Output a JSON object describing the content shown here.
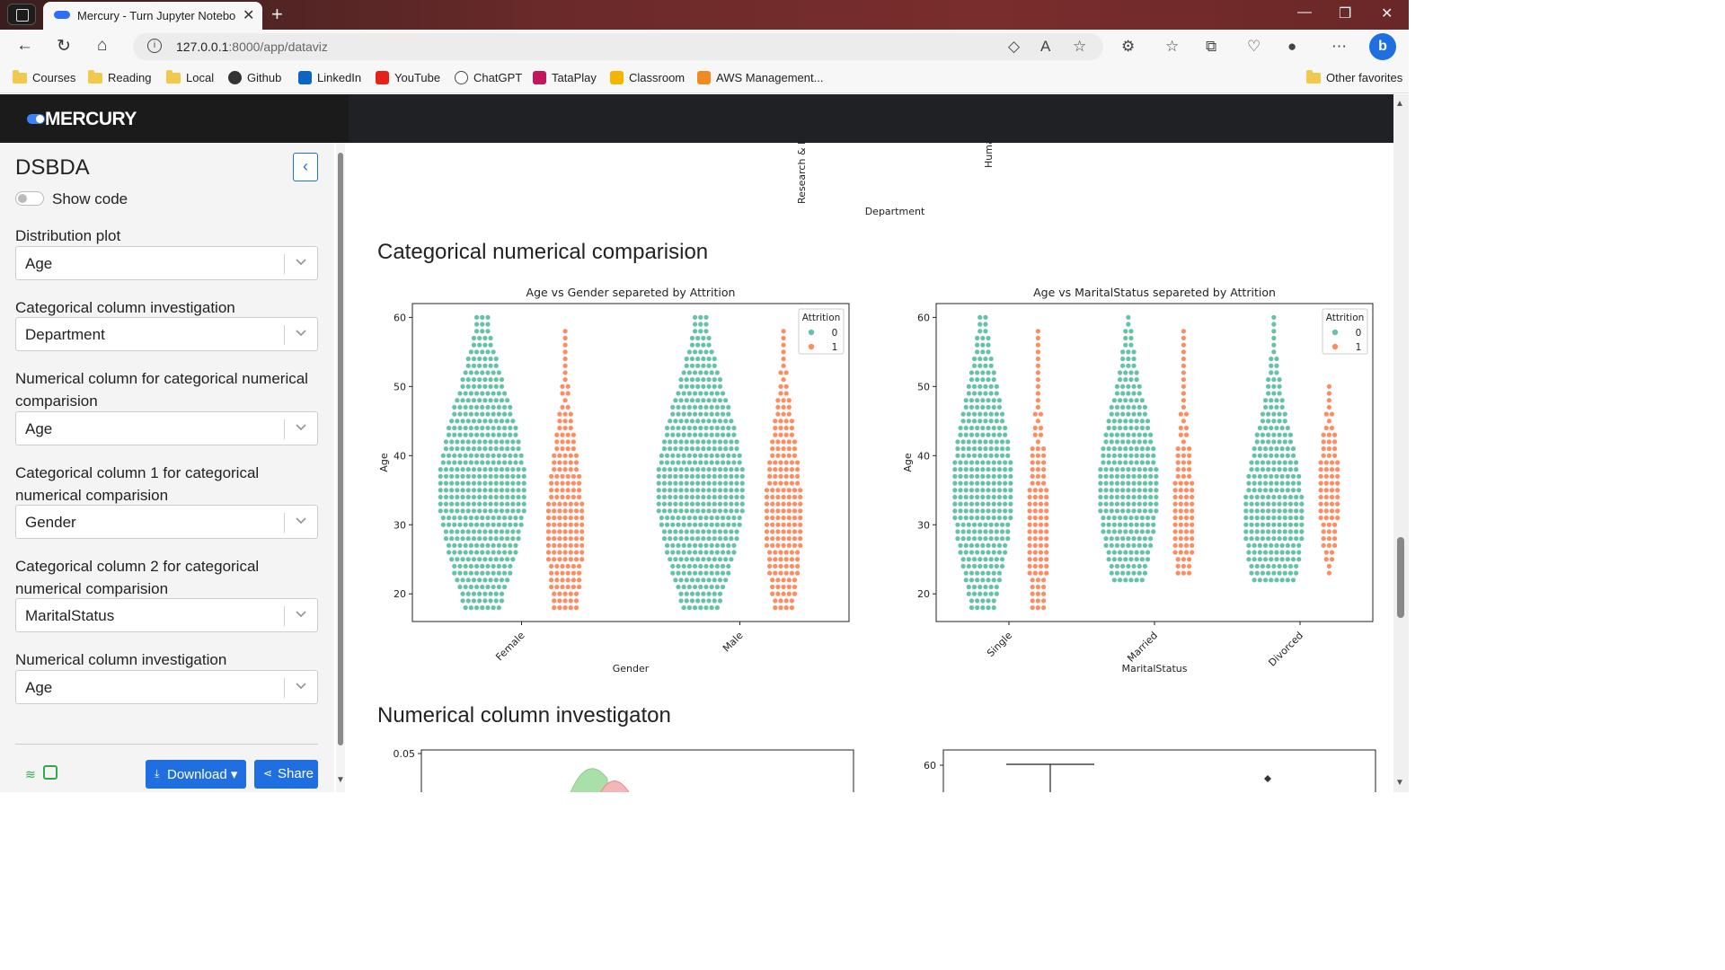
{
  "browser": {
    "tab_title": "Mercury - Turn Jupyter Noteboo",
    "url_host": "127.0.0.1",
    "url_path": ":8000/app/dataviz",
    "bookmarks": [
      "Courses",
      "Reading",
      "Local",
      "Github",
      "LinkedIn",
      "YouTube",
      "ChatGPT",
      "TataPlay",
      "Classroom",
      "AWS Management...",
      "Other favorites"
    ]
  },
  "app": {
    "logo": "MERCURY",
    "sidebar": {
      "title": "DSBDA",
      "show_code_label": "Show code",
      "fields": [
        {
          "label": "Distribution plot",
          "value": "Age"
        },
        {
          "label": "Categorical column investigation",
          "value": "Department"
        },
        {
          "label": "Numerical column for categorical numerical comparision",
          "value": "Age"
        },
        {
          "label": "Categorical column 1 for categorical numerical comparision",
          "value": "Gender"
        },
        {
          "label": "Categorical column 2 for categorical numerical comparision",
          "value": "MaritalStatus"
        },
        {
          "label": "Numerical column investigation",
          "value": "Age"
        }
      ],
      "download_label": "Download",
      "share_label": "Share"
    },
    "main": {
      "prev_plot_tick_labels": [
        "Research & D",
        "Huma"
      ],
      "prev_plot_xlabel": "Department",
      "section1_title": "Categorical numerical comparision",
      "section2_title": "Numerical column investigaton"
    }
  },
  "chart_data": [
    {
      "type": "scatter",
      "subtype": "swarm",
      "title": "Age vs Gender separeted by Attrition",
      "xlabel": "Gender",
      "ylabel": "Age",
      "categories": [
        "Female",
        "Male"
      ],
      "ylim": [
        16,
        62
      ],
      "yticks": [
        20,
        30,
        40,
        50,
        60
      ],
      "legend": {
        "title": "Attrition",
        "entries": [
          "0",
          "1"
        ],
        "placement": "top-right"
      },
      "series": [
        {
          "name": "0",
          "color": "#66c2a5",
          "age_range": {
            "Female": [
              18,
              60
            ],
            "Male": [
              18,
              60
            ]
          },
          "widest_at": {
            "Female": 35,
            "Male": 35
          }
        },
        {
          "name": "1",
          "color": "#fc8d62",
          "age_range": {
            "Female": [
              18,
              58
            ],
            "Male": [
              18,
              58
            ]
          },
          "widest_at": {
            "Female": 29,
            "Male": 31
          }
        }
      ]
    },
    {
      "type": "scatter",
      "subtype": "swarm",
      "title": "Age vs MaritalStatus separeted by Attrition",
      "xlabel": "MaritalStatus",
      "ylabel": "Age",
      "categories": [
        "Single",
        "Married",
        "Divorced"
      ],
      "ylim": [
        16,
        62
      ],
      "yticks": [
        20,
        30,
        40,
        50,
        60
      ],
      "legend": {
        "title": "Attrition",
        "entries": [
          "0",
          "1"
        ],
        "placement": "top-right"
      },
      "series": [
        {
          "name": "0",
          "color": "#66c2a5",
          "age_range": {
            "Single": [
              18,
              60
            ],
            "Married": [
              22,
              60
            ],
            "Divorced": [
              22,
              60
            ]
          },
          "widest_at": {
            "Single": 35,
            "Married": 35,
            "Divorced": 31
          }
        },
        {
          "name": "1",
          "color": "#fc8d62",
          "age_range": {
            "Single": [
              18,
              58
            ],
            "Married": [
              23,
              58
            ],
            "Divorced": [
              23,
              50
            ]
          },
          "widest_at": {
            "Single": 29,
            "Married": 31,
            "Divorced": 35
          }
        }
      ]
    },
    {
      "type": "area",
      "title": "",
      "yticks": [
        0.05
      ],
      "series_colors": [
        "#a9dfa9",
        "#f4b6b6"
      ]
    },
    {
      "type": "box",
      "title": "",
      "yticks": [
        60
      ]
    }
  ]
}
